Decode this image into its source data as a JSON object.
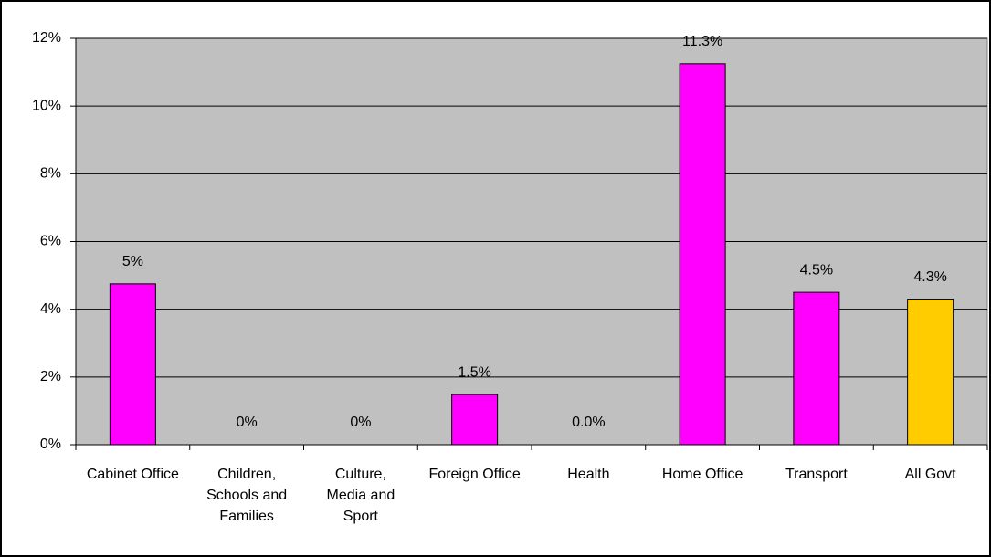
{
  "chart_data": {
    "type": "bar",
    "categories": [
      "Cabinet Office",
      "Children, Schools and Families",
      "Culture, Media and Sport",
      "Foreign Office",
      "Health",
      "Home Office",
      "Transport",
      "All Govt"
    ],
    "values": [
      4.75,
      0,
      0,
      1.48,
      0,
      11.25,
      4.5,
      4.3
    ],
    "value_labels": [
      "5%",
      "0%",
      "0%",
      "1.5%",
      "0.0%",
      "11.3%",
      "4.5%",
      "4.3%"
    ],
    "colors": [
      "#ff00ff",
      "#ff00ff",
      "#ff00ff",
      "#ff00ff",
      "#ff00ff",
      "#ff00ff",
      "#ff00ff",
      "#ffcc00"
    ],
    "ylim": [
      0,
      12
    ],
    "yticks": [
      {
        "value": 0,
        "label": "0%"
      },
      {
        "value": 2,
        "label": "2%"
      },
      {
        "value": 4,
        "label": "4%"
      },
      {
        "value": 6,
        "label": "6%"
      },
      {
        "value": 8,
        "label": "8%"
      },
      {
        "value": 10,
        "label": "10%"
      },
      {
        "value": 12,
        "label": "12%"
      }
    ],
    "grid": true
  }
}
